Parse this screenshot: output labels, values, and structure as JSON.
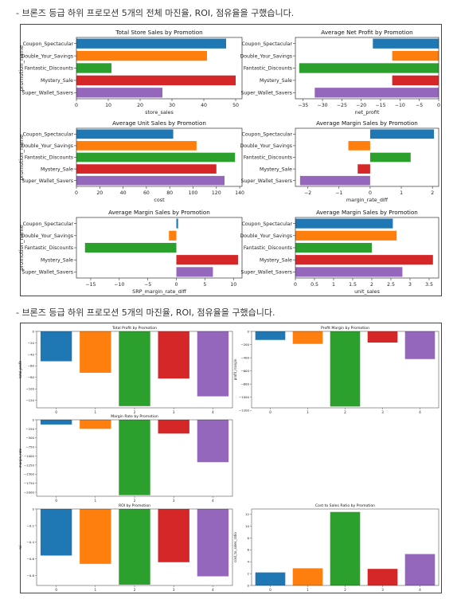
{
  "captions": [
    "- 브론즈 등급 하위 프로모션 5개의 전체 마진율, ROI, 점유율을 구했습니다.",
    "- 브론즈 등급 하위 프로모션 5개의 마진율, ROI, 점유율을 구했습니다."
  ],
  "colors": [
    "#1f77b4",
    "#ff7f0e",
    "#2ca02c",
    "#d62728",
    "#9467bd"
  ],
  "chart_data": [
    {
      "type": "bar",
      "orientation": "horizontal",
      "title": "Total Store Sales by Promotion",
      "ylabel": "promotion_name",
      "xlabel": "store_sales",
      "categories": [
        "Coupon_Spectacular",
        "Double_Your_Savings",
        "Fantastic_Discounts",
        "Mystery_Sale",
        "Super_Wallet_Savers"
      ],
      "values": [
        47,
        41,
        11,
        50,
        27
      ],
      "xlim": [
        0,
        52
      ],
      "ticks": [
        0,
        10,
        20,
        30,
        40,
        50
      ]
    },
    {
      "type": "bar",
      "orientation": "horizontal",
      "title": "Average Net Profit by Promotion",
      "ylabel": "",
      "xlabel": "net_profit",
      "categories": [
        "Coupon_Spectacular",
        "Double_Your_Savings",
        "Fantastic_Discounts",
        "Mystery_Sale",
        "Super_Wallet_Savers"
      ],
      "values": [
        -17,
        -12,
        -36,
        -12,
        -32
      ],
      "xlim": [
        -37,
        0
      ],
      "ticks": [
        -35,
        -30,
        -25,
        -20,
        -15,
        -10,
        -5,
        0
      ]
    },
    {
      "type": "bar",
      "orientation": "horizontal",
      "title": "Average Unit Sales by Promotion",
      "ylabel": "promotion_name",
      "xlabel": "cost",
      "categories": [
        "Coupon_Spectacular",
        "Double_Your_Savings",
        "Fantastic_Discounts",
        "Mystery_Sale",
        "Super_Wallet_Savers"
      ],
      "values": [
        83,
        103,
        136,
        120,
        127
      ],
      "xlim": [
        0,
        142
      ],
      "ticks": [
        0,
        20,
        40,
        60,
        80,
        100,
        120,
        140
      ]
    },
    {
      "type": "bar",
      "orientation": "horizontal",
      "title": "Average Margin Sales by Promotion",
      "ylabel": "",
      "xlabel": "margin_rate_diff",
      "categories": [
        "Coupon_Spectacular",
        "Double_Your_Savings",
        "Fantastic_Discounts",
        "Mystery_Sale",
        "Super_Wallet_Savers"
      ],
      "values": [
        2.05,
        -0.7,
        1.3,
        -0.4,
        -2.25
      ],
      "xlim": [
        -2.4,
        2.2
      ],
      "ticks": [
        -2,
        -1,
        0,
        1,
        2
      ]
    },
    {
      "type": "bar",
      "orientation": "horizontal",
      "title": "Average Margin Sales by Promotion",
      "ylabel": "promotion_name",
      "xlabel": "SRP_margin_rate_diff",
      "categories": [
        "Coupon_Spectacular",
        "Double_Your_Savings",
        "Fantastic_Discounts",
        "Mystery_Sale",
        "Super_Wallet_Savers"
      ],
      "values": [
        0.3,
        -1.3,
        -16,
        10.8,
        6.4
      ],
      "xlim": [
        -17.5,
        11.5
      ],
      "ticks": [
        -15,
        -10,
        -5,
        0,
        5,
        10
      ]
    },
    {
      "type": "bar",
      "orientation": "horizontal",
      "title": "Average Margin Sales by Promotion",
      "ylabel": "",
      "xlabel": "unit_sales",
      "categories": [
        "Coupon_Spectacular",
        "Double_Your_Savings",
        "Fantastic_Discounts",
        "Mystery_Sale",
        "Super_Wallet_Savers"
      ],
      "values": [
        2.55,
        2.65,
        2.0,
        3.6,
        2.8
      ],
      "xlim": [
        0,
        3.75
      ],
      "ticks": [
        0.0,
        0.5,
        1.0,
        1.5,
        2.0,
        2.5,
        3.0,
        3.5
      ]
    },
    {
      "type": "bar",
      "orientation": "vertical",
      "title": "Total Profit by Promotion",
      "ylabel": "total_profit",
      "xlabel": "",
      "categories": [
        "0",
        "1",
        "2",
        "3",
        "4"
      ],
      "values": [
        -52,
        -72,
        -130,
        -82,
        -113
      ],
      "ylim": [
        -133,
        0
      ],
      "ticks": [
        0,
        -20,
        -40,
        -60,
        -80,
        -100,
        -120
      ]
    },
    {
      "type": "bar",
      "orientation": "vertical",
      "title": "Profit Margin by Promotion",
      "ylabel": "profit_margin",
      "xlabel": "",
      "categories": [
        "0",
        "1",
        "2",
        "3",
        "4"
      ],
      "values": [
        -130,
        -190,
        -1140,
        -170,
        -420
      ],
      "ylim": [
        -1160,
        0
      ],
      "ticks": [
        0,
        -200,
        -400,
        -600,
        -800,
        -1000,
        -1200
      ]
    },
    {
      "type": "bar",
      "orientation": "vertical",
      "title": "Margin Rate by Promotion",
      "ylabel": "margin_rate",
      "xlabel": "",
      "categories": [
        "0",
        "1",
        "2",
        "3",
        "4"
      ],
      "values": [
        -130,
        -250,
        -2080,
        -380,
        -1170
      ],
      "ylim": [
        -2110,
        0
      ],
      "ticks": [
        0,
        -250,
        -500,
        -750,
        -1000,
        -1250,
        -1500,
        -1750,
        -2000
      ]
    },
    {
      "type": "bar",
      "orientation": "vertical",
      "title": "ROI by Promotion",
      "ylabel": "roi",
      "xlabel": "",
      "categories": [
        "0",
        "1",
        "2",
        "3",
        "4"
      ],
      "values": [
        -0.56,
        -0.66,
        -0.91,
        -0.64,
        -0.81
      ],
      "ylim": [
        -0.92,
        0
      ],
      "ticks": [
        0.0,
        -0.2,
        -0.4,
        -0.6,
        -0.8
      ]
    },
    {
      "type": "bar",
      "orientation": "vertical",
      "title": "Cost to Sales Ratio by Promotion",
      "ylabel": "cost_to_sales_ratio",
      "xlabel": "",
      "categories": [
        "0",
        "1",
        "2",
        "3",
        "4"
      ],
      "values": [
        2.2,
        2.9,
        12.4,
        2.8,
        5.3
      ],
      "ylim": [
        0,
        12.9
      ],
      "ticks": [
        0,
        2,
        4,
        6,
        8,
        10,
        12
      ]
    }
  ]
}
